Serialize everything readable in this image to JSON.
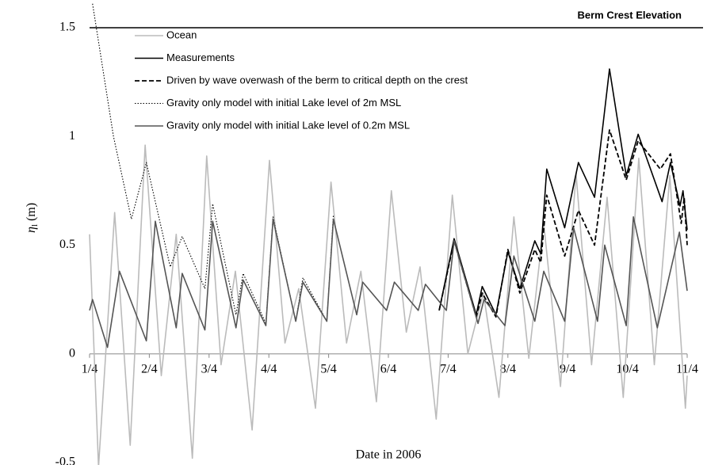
{
  "chart_data": {
    "type": "line",
    "annotation": "Berm Crest Elevation",
    "berm_crest": 1.5,
    "xlabel": "Date in 2006",
    "ylabel": {
      "symbol": "η",
      "subscript": "l",
      "unit": "(m)"
    },
    "xlim": [
      0,
      10
    ],
    "xticks": [
      {
        "value": 0,
        "label": "1/4"
      },
      {
        "value": 1,
        "label": "2/4"
      },
      {
        "value": 2,
        "label": "3/4"
      },
      {
        "value": 3,
        "label": "4/4"
      },
      {
        "value": 4,
        "label": "5/4"
      },
      {
        "value": 5,
        "label": "6/4"
      },
      {
        "value": 6,
        "label": "7/4"
      },
      {
        "value": 7,
        "label": "8/4"
      },
      {
        "value": 8,
        "label": "9/4"
      },
      {
        "value": 9,
        "label": "10/4"
      },
      {
        "value": 10,
        "label": "11/4"
      }
    ],
    "ylim": [
      -0.5,
      1.6
    ],
    "yticks": [
      -0.5,
      0,
      0.5,
      1,
      1.5
    ],
    "legend": "top-left",
    "series": [
      {
        "name": "Ocean",
        "color": "#bbbbbb",
        "style": "solid",
        "x": [
          0,
          0.15,
          0.42,
          0.68,
          0.93,
          1.2,
          1.45,
          1.72,
          1.96,
          2.2,
          2.44,
          2.72,
          3.01,
          3.27,
          3.5,
          3.78,
          4.04,
          4.3,
          4.54,
          4.8,
          5.05,
          5.3,
          5.53,
          5.8,
          6.07,
          6.33,
          6.59,
          6.85,
          7.1,
          7.35,
          7.6,
          7.88,
          8.14,
          8.4,
          8.66,
          8.93,
          9.19,
          9.45,
          9.71,
          9.97,
          10
        ],
        "values": [
          0.55,
          -0.52,
          0.65,
          -0.42,
          0.96,
          -0.1,
          0.55,
          -0.48,
          0.91,
          -0.05,
          0.38,
          -0.35,
          0.89,
          0.05,
          0.3,
          -0.25,
          0.79,
          0.05,
          0.38,
          -0.22,
          0.75,
          0.1,
          0.4,
          -0.3,
          0.73,
          0.0,
          0.28,
          -0.2,
          0.63,
          -0.02,
          0.6,
          -0.15,
          0.83,
          -0.05,
          0.72,
          -0.2,
          0.9,
          -0.05,
          0.82,
          -0.25,
          -0.1
        ]
      },
      {
        "name": "Measurements",
        "color": "#000000",
        "style": "solid",
        "x": [
          5.85,
          6.1,
          6.47,
          6.57,
          6.8,
          7.0,
          7.2,
          7.45,
          7.55,
          7.65,
          7.95,
          8.18,
          8.45,
          8.7,
          8.98,
          9.18,
          9.58,
          9.72,
          9.88,
          9.93,
          10
        ],
        "values": [
          0.2,
          0.53,
          0.18,
          0.31,
          0.18,
          0.47,
          0.3,
          0.52,
          0.46,
          0.85,
          0.58,
          0.88,
          0.72,
          1.31,
          0.82,
          1.01,
          0.7,
          0.88,
          0.68,
          0.75,
          0.57
        ]
      },
      {
        "name": "Driven by wave overwash of the berm to critical depth on the crest",
        "color": "#000000",
        "style": "dashed",
        "x": [
          5.85,
          6.1,
          6.47,
          6.57,
          6.8,
          7.0,
          7.2,
          7.45,
          7.55,
          7.65,
          7.95,
          8.18,
          8.45,
          8.7,
          8.98,
          9.18,
          9.55,
          9.72,
          9.9,
          9.95,
          10
        ],
        "values": [
          0.2,
          0.52,
          0.17,
          0.28,
          0.17,
          0.48,
          0.28,
          0.48,
          0.42,
          0.73,
          0.45,
          0.66,
          0.5,
          1.03,
          0.8,
          0.98,
          0.85,
          0.92,
          0.6,
          0.72,
          0.5
        ]
      },
      {
        "name": "Gravity only model with initial Lake level of 2m MSL",
        "color": "#000000",
        "style": "dotted",
        "x": [
          0.05,
          0.4,
          0.7,
          0.95,
          1.35,
          1.55,
          1.93,
          2.06,
          2.45,
          2.57,
          2.95,
          3.07,
          3.45,
          3.57,
          3.97,
          4.08
        ],
        "values": [
          1.61,
          1.0,
          0.62,
          0.88,
          0.4,
          0.54,
          0.3,
          0.69,
          0.18,
          0.37,
          0.14,
          0.63,
          0.15,
          0.35,
          0.15,
          0.64
        ]
      },
      {
        "name": "Gravity only model with initial Lake level of 0.2m MSL",
        "color": "#555555",
        "style": "solid",
        "x": [
          0,
          0.05,
          0.3,
          0.5,
          0.95,
          1.1,
          1.45,
          1.55,
          1.93,
          2.06,
          2.45,
          2.57,
          2.95,
          3.07,
          3.45,
          3.57,
          3.97,
          4.08,
          4.47,
          4.57,
          4.97,
          5.1,
          5.5,
          5.62,
          5.97,
          6.1,
          6.5,
          6.6,
          6.95,
          7.1,
          7.45,
          7.6,
          7.95,
          8.1,
          8.5,
          8.62,
          8.98,
          9.1,
          9.5,
          9.87,
          10
        ],
        "values": [
          0.2,
          0.25,
          0.03,
          0.38,
          0.06,
          0.61,
          0.12,
          0.37,
          0.11,
          0.61,
          0.12,
          0.34,
          0.13,
          0.62,
          0.15,
          0.33,
          0.15,
          0.62,
          0.18,
          0.33,
          0.2,
          0.33,
          0.2,
          0.32,
          0.2,
          0.52,
          0.14,
          0.25,
          0.13,
          0.45,
          0.15,
          0.38,
          0.15,
          0.58,
          0.15,
          0.5,
          0.13,
          0.63,
          0.12,
          0.56,
          0.29
        ]
      }
    ]
  }
}
